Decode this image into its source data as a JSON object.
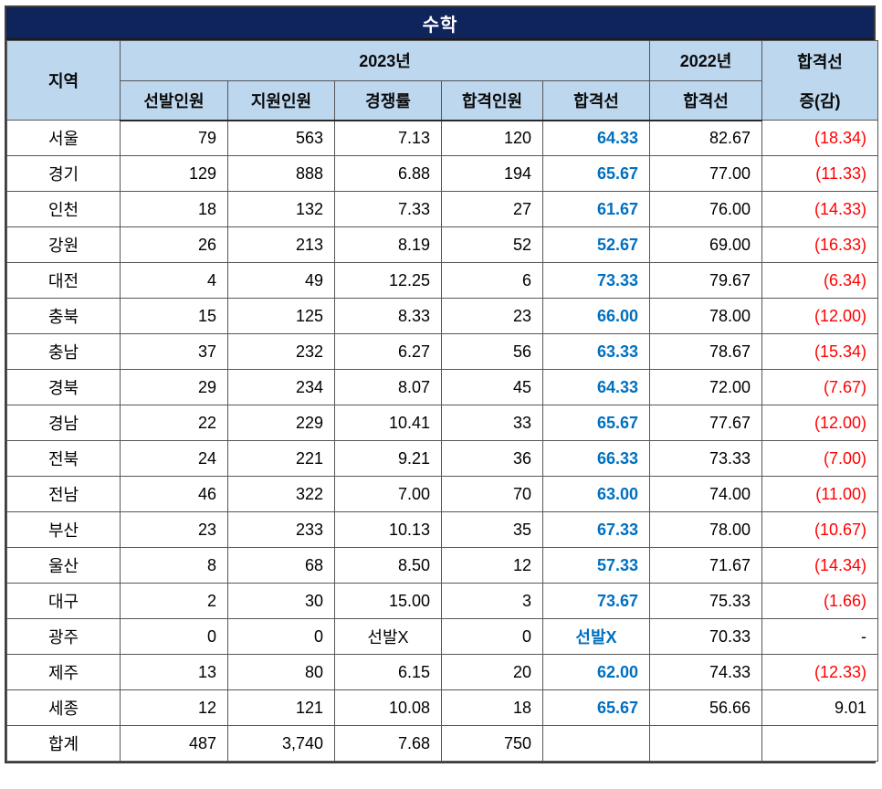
{
  "title": "수학",
  "header": {
    "region": "지역",
    "year2023": "2023년",
    "sub2023": [
      "선발인원",
      "지원인원",
      "경쟁률",
      "합격인원",
      "합격선"
    ],
    "year2022": "2022년",
    "sub2022": "합격선",
    "diff_line1": "합격선",
    "diff_line2": "증(감)"
  },
  "colors": {
    "title_bg": "#10245c",
    "title_text": "#ffffff",
    "header_bg": "#bdd7ee",
    "pass_line_blue": "#0070c0",
    "decrease_red": "#ff0000",
    "body_text": "#000000"
  },
  "table": {
    "no_selection_label": "선발X",
    "rows": [
      {
        "region": "서울",
        "cells": [
          "79",
          "563",
          "7.13",
          "120",
          "64.33",
          "82.67",
          "(18.34)"
        ]
      },
      {
        "region": "경기",
        "cells": [
          "129",
          "888",
          "6.88",
          "194",
          "65.67",
          "77.00",
          "(11.33)"
        ]
      },
      {
        "region": "인천",
        "cells": [
          "18",
          "132",
          "7.33",
          "27",
          "61.67",
          "76.00",
          "(14.33)"
        ]
      },
      {
        "region": "강원",
        "cells": [
          "26",
          "213",
          "8.19",
          "52",
          "52.67",
          "69.00",
          "(16.33)"
        ]
      },
      {
        "region": "대전",
        "cells": [
          "4",
          "49",
          "12.25",
          "6",
          "73.33",
          "79.67",
          "(6.34)"
        ]
      },
      {
        "region": "충북",
        "cells": [
          "15",
          "125",
          "8.33",
          "23",
          "66.00",
          "78.00",
          "(12.00)"
        ]
      },
      {
        "region": "충남",
        "cells": [
          "37",
          "232",
          "6.27",
          "56",
          "63.33",
          "78.67",
          "(15.34)"
        ]
      },
      {
        "region": "경북",
        "cells": [
          "29",
          "234",
          "8.07",
          "45",
          "64.33",
          "72.00",
          "(7.67)"
        ]
      },
      {
        "region": "경남",
        "cells": [
          "22",
          "229",
          "10.41",
          "33",
          "65.67",
          "77.67",
          "(12.00)"
        ]
      },
      {
        "region": "전북",
        "cells": [
          "24",
          "221",
          "9.21",
          "36",
          "66.33",
          "73.33",
          "(7.00)"
        ]
      },
      {
        "region": "전남",
        "cells": [
          "46",
          "322",
          "7.00",
          "70",
          "63.00",
          "74.00",
          "(11.00)"
        ]
      },
      {
        "region": "부산",
        "cells": [
          "23",
          "233",
          "10.13",
          "35",
          "67.33",
          "78.00",
          "(10.67)"
        ]
      },
      {
        "region": "울산",
        "cells": [
          "8",
          "68",
          "8.50",
          "12",
          "57.33",
          "71.67",
          "(14.34)"
        ]
      },
      {
        "region": "대구",
        "cells": [
          "2",
          "30",
          "15.00",
          "3",
          "73.67",
          "75.33",
          "(1.66)"
        ]
      },
      {
        "region": "광주",
        "cells": [
          "0",
          "0",
          "선발X",
          "0",
          "선발X",
          "70.33",
          "-"
        ]
      },
      {
        "region": "제주",
        "cells": [
          "13",
          "80",
          "6.15",
          "20",
          "62.00",
          "74.33",
          "(12.33)"
        ]
      },
      {
        "region": "세종",
        "cells": [
          "12",
          "121",
          "10.08",
          "18",
          "65.67",
          "56.66",
          "9.01"
        ]
      },
      {
        "region": "합계",
        "cells": [
          "487",
          "3,740",
          "7.68",
          "750",
          "",
          "",
          ""
        ]
      }
    ]
  }
}
